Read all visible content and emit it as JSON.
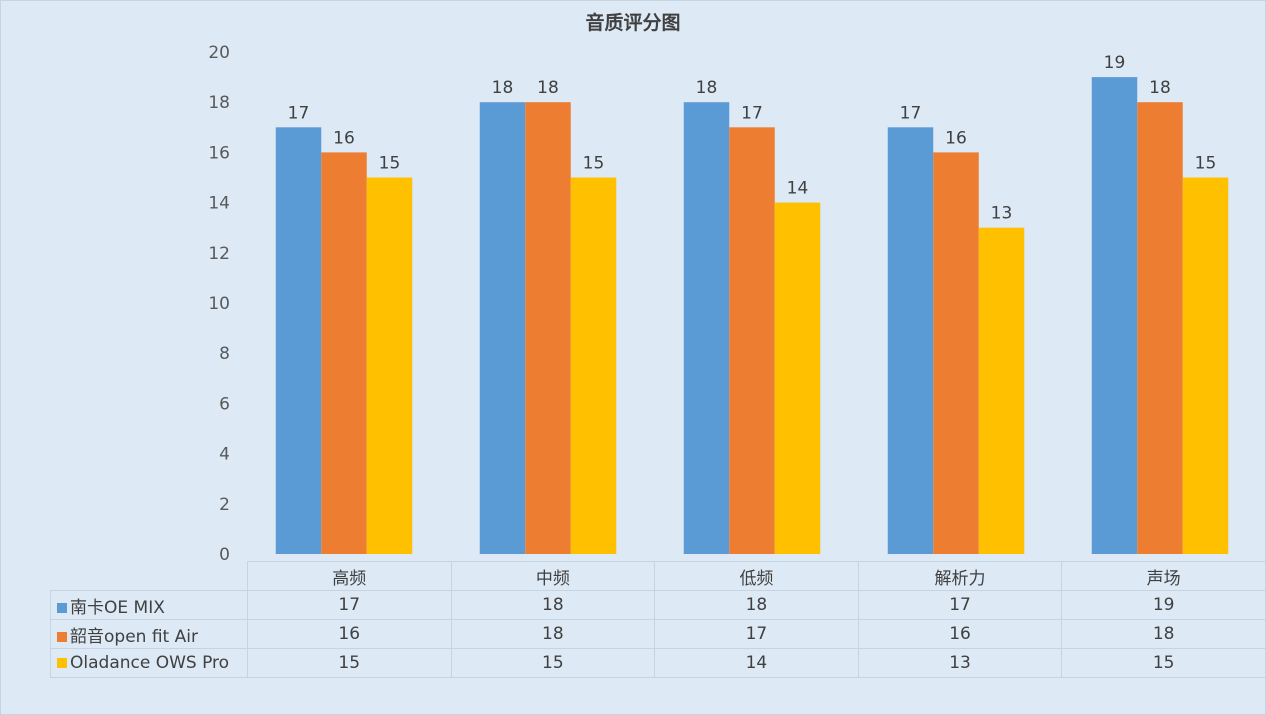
{
  "chart_data": {
    "type": "bar",
    "title": "音质评分图",
    "categories": [
      "高频",
      "中频",
      "低频",
      "解析力",
      "声场"
    ],
    "series": [
      {
        "name": "南卡OE MIX",
        "color": "#5b9bd5",
        "values": [
          17,
          18,
          18,
          17,
          19
        ]
      },
      {
        "name": "韶音open fit Air",
        "color": "#ed7d31",
        "values": [
          16,
          18,
          17,
          16,
          18
        ]
      },
      {
        "name": "Oladance OWS Pro",
        "color": "#ffc000",
        "values": [
          15,
          15,
          14,
          13,
          15
        ]
      }
    ],
    "ylim": [
      0,
      20
    ],
    "yticks": [
      0,
      2,
      4,
      6,
      8,
      10,
      12,
      14,
      16,
      18,
      20
    ],
    "grid": false,
    "legend": "data-table",
    "data_labels": true
  }
}
